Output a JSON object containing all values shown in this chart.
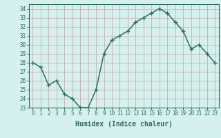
{
  "x": [
    0,
    1,
    2,
    3,
    4,
    5,
    6,
    7,
    8,
    9,
    10,
    11,
    12,
    13,
    14,
    15,
    16,
    17,
    18,
    19,
    20,
    21,
    22,
    23
  ],
  "y": [
    28.0,
    27.5,
    25.5,
    26.0,
    24.5,
    24.0,
    23.0,
    23.0,
    25.0,
    29.0,
    30.5,
    31.0,
    31.5,
    32.5,
    33.0,
    33.5,
    34.0,
    33.5,
    32.5,
    31.5,
    29.5,
    30.0,
    29.0,
    28.0
  ],
  "line_color": "#2d6e63",
  "marker": "+",
  "marker_size": 4,
  "line_width": 1.1,
  "xlabel": "Humidex (Indice chaleur)",
  "xlim": [
    -0.5,
    23.5
  ],
  "ylim": [
    23,
    34.5
  ],
  "yticks": [
    23,
    24,
    25,
    26,
    27,
    28,
    29,
    30,
    31,
    32,
    33,
    34
  ],
  "xticks": [
    0,
    1,
    2,
    3,
    4,
    5,
    6,
    7,
    8,
    9,
    10,
    11,
    12,
    13,
    14,
    15,
    16,
    17,
    18,
    19,
    20,
    21,
    22,
    23
  ],
  "bg_color": "#d6f0ee",
  "plot_bg_color": "#d6f0ee",
  "grid_color": "#c8b8b8",
  "tick_color": "#2d6e63",
  "label_color": "#2d6e63",
  "font_family": "monospace",
  "tick_fontsize": 5.5,
  "xlabel_fontsize": 7.0
}
